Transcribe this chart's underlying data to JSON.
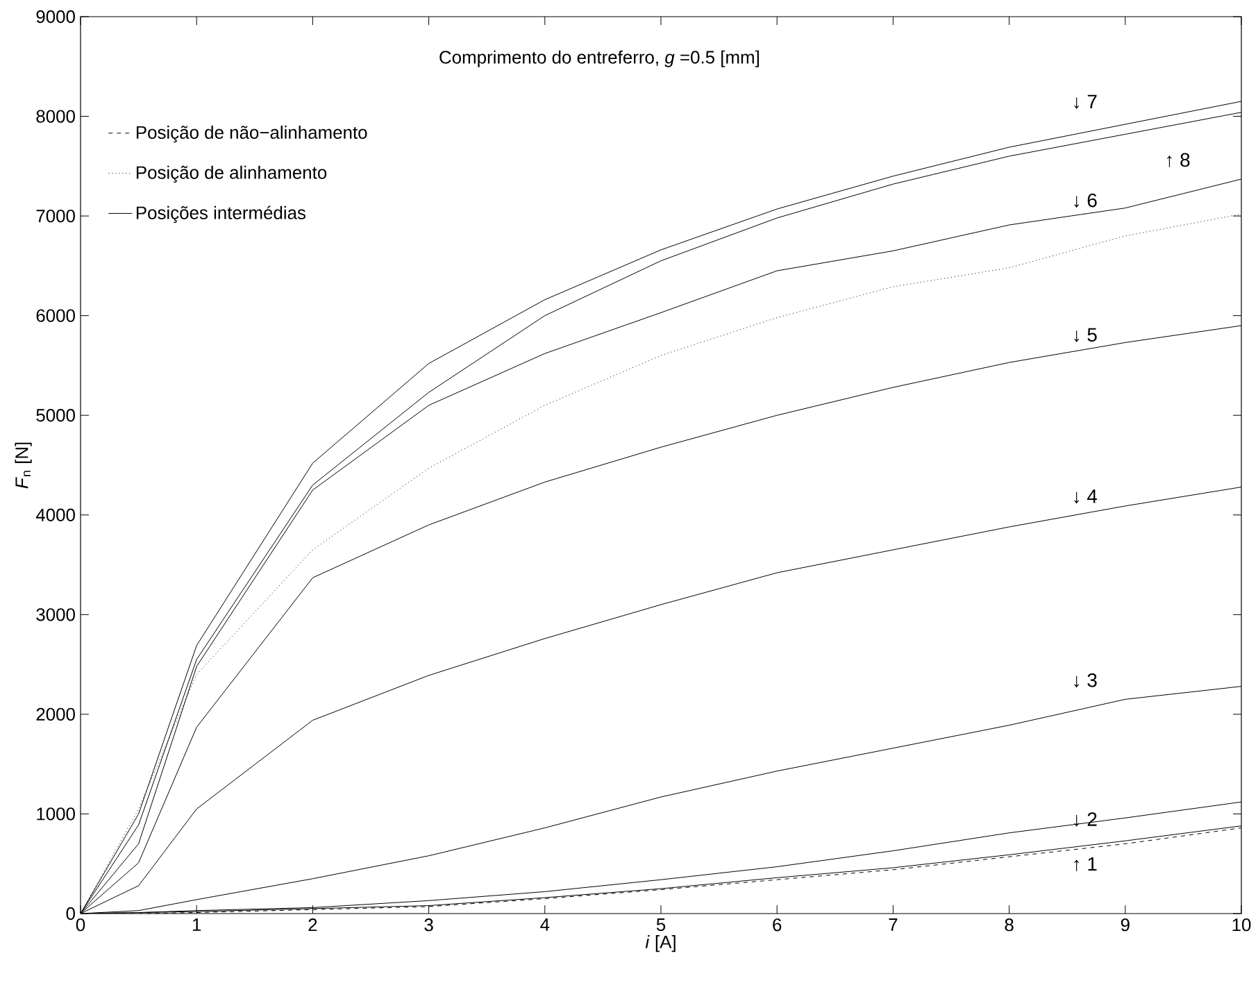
{
  "chart_data": {
    "type": "line",
    "xlabel": "*i* [A]",
    "ylabel": "*F*$_{n}$ [N]",
    "x": [
      0,
      0.5,
      1,
      2,
      3,
      4,
      5,
      6,
      7,
      8,
      9,
      10
    ],
    "xlim": [
      0,
      10
    ],
    "xticks": [
      0,
      1,
      2,
      3,
      4,
      5,
      6,
      7,
      8,
      9,
      10
    ],
    "ylim": [
      0,
      9000
    ],
    "yticks": [
      0,
      1000,
      2000,
      3000,
      4000,
      5000,
      6000,
      7000,
      8000,
      9000
    ],
    "legend": "top left",
    "series": [
      {
        "name": "Posição de não−alinhamento",
        "color": "#000000",
        "line_style": "dashed",
        "values": [
          0,
          0,
          10,
          40,
          70,
          150,
          240,
          340,
          440,
          570,
          700,
          860
        ]
      },
      {
        "name": "Posição de alinhamento",
        "color": "#000000",
        "line_style": "dotted",
        "values": [
          0,
          1050,
          2400,
          3650,
          4470,
          5100,
          5600,
          5980,
          6290,
          6480,
          6800,
          7020
        ]
      },
      {
        "name": "Posições intermédias",
        "color": "#000000",
        "line_style": "solid",
        "values": [
          0,
          10,
          20,
          50,
          80,
          160,
          250,
          360,
          460,
          590,
          730,
          880
        ]
      },
      {
        "color": "#000000",
        "line_style": "solid",
        "values": [
          0,
          10,
          30,
          60,
          130,
          220,
          340,
          470,
          630,
          810,
          960,
          1120
        ]
      },
      {
        "color": "#000000",
        "line_style": "solid",
        "values": [
          0,
          30,
          140,
          350,
          580,
          860,
          1170,
          1430,
          1660,
          1890,
          2150,
          2280
        ]
      },
      {
        "color": "#000000",
        "line_style": "solid",
        "values": [
          0,
          280,
          1050,
          1940,
          2390,
          2760,
          3100,
          3420,
          3650,
          3880,
          4090,
          4280
        ]
      },
      {
        "color": "#000000",
        "line_style": "solid",
        "values": [
          0,
          510,
          1870,
          3370,
          3900,
          4330,
          4680,
          5000,
          5280,
          5530,
          5730,
          5900
        ]
      },
      {
        "color": "#000000",
        "line_style": "solid",
        "values": [
          0,
          700,
          2480,
          4250,
          5100,
          5620,
          6030,
          6450,
          6650,
          6910,
          7080,
          7370
        ]
      },
      {
        "color": "#000000",
        "line_style": "solid",
        "values": [
          0,
          890,
          2550,
          4300,
          5230,
          6000,
          6550,
          6980,
          7320,
          7600,
          7820,
          8040
        ]
      },
      {
        "color": "#000000",
        "line_style": "solid",
        "values": [
          0,
          1000,
          2690,
          4520,
          5520,
          6160,
          6660,
          7070,
          7400,
          7690,
          7920,
          8150
        ]
      }
    ],
    "annotations": [
      "Comprimento do entreferro, *g* =0.5 [mm]",
      "↓ 7",
      "↑ 8",
      "↓ 6",
      "↓ 5",
      "↓ 4",
      "↓ 3",
      "↓ 2",
      "↑ 1"
    ]
  }
}
